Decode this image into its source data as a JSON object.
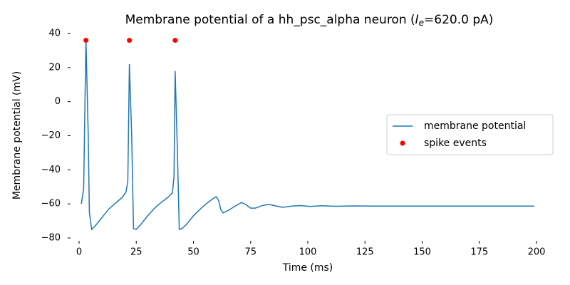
{
  "chart_data": {
    "type": "line",
    "title": [
      "Membrane potential of a hh_psc_alpha neuron (",
      "I",
      "e",
      "=620.0 pA)"
    ],
    "xlabel": "Time (ms)",
    "ylabel": "Membrane potential (mV)",
    "xlim": [
      0,
      200
    ],
    "ylim": [
      -80,
      40
    ],
    "xticks": [
      0,
      25,
      50,
      75,
      100,
      125,
      150,
      175,
      200
    ],
    "yticks": [
      {
        "value": -80,
        "label": "−80"
      },
      {
        "value": -60,
        "label": "−60"
      },
      {
        "value": -40,
        "label": "−40"
      },
      {
        "value": -20,
        "label": "−20"
      },
      0,
      20,
      40
    ],
    "legend": "center right",
    "series": [
      {
        "name": "membrane potential",
        "type": "line",
        "color": "#1f77b4",
        "x": [
          1,
          2,
          3,
          4,
          4.5,
          5.5,
          7,
          10,
          13,
          16,
          19,
          20.5,
          21.3,
          22,
          23,
          23.8,
          25,
          27,
          30,
          33,
          36,
          39,
          40.8,
          41.5,
          42,
          43,
          43.8,
          45,
          47,
          50,
          53,
          56,
          59,
          60,
          61,
          62,
          63,
          65,
          68,
          71,
          73,
          75,
          77,
          80,
          83,
          86,
          89,
          93,
          97,
          101,
          106,
          112,
          120,
          130,
          150,
          199
        ],
        "values": [
          -60,
          -51,
          37,
          -20,
          -65,
          -75,
          -73,
          -68,
          -63,
          -59.5,
          -56,
          -53,
          -47,
          22,
          -20,
          -74.5,
          -75,
          -72,
          -67,
          -62.5,
          -59,
          -56,
          -53.5,
          -44,
          18,
          -30,
          -75,
          -74.5,
          -72,
          -67,
          -63,
          -59.5,
          -56.5,
          -55.8,
          -58,
          -63.5,
          -65.3,
          -64,
          -61.5,
          -59.2,
          -60.5,
          -62.5,
          -62.5,
          -61,
          -60.3,
          -61.2,
          -62,
          -61.3,
          -61,
          -61.5,
          -61.1,
          -61.4,
          -61.2,
          -61.3,
          -61.3,
          -61.3
        ]
      },
      {
        "name": "spike events",
        "type": "scatter",
        "color": "#ff0000",
        "x": [
          3,
          22,
          42
        ],
        "values": [
          36,
          36,
          36
        ]
      }
    ]
  }
}
